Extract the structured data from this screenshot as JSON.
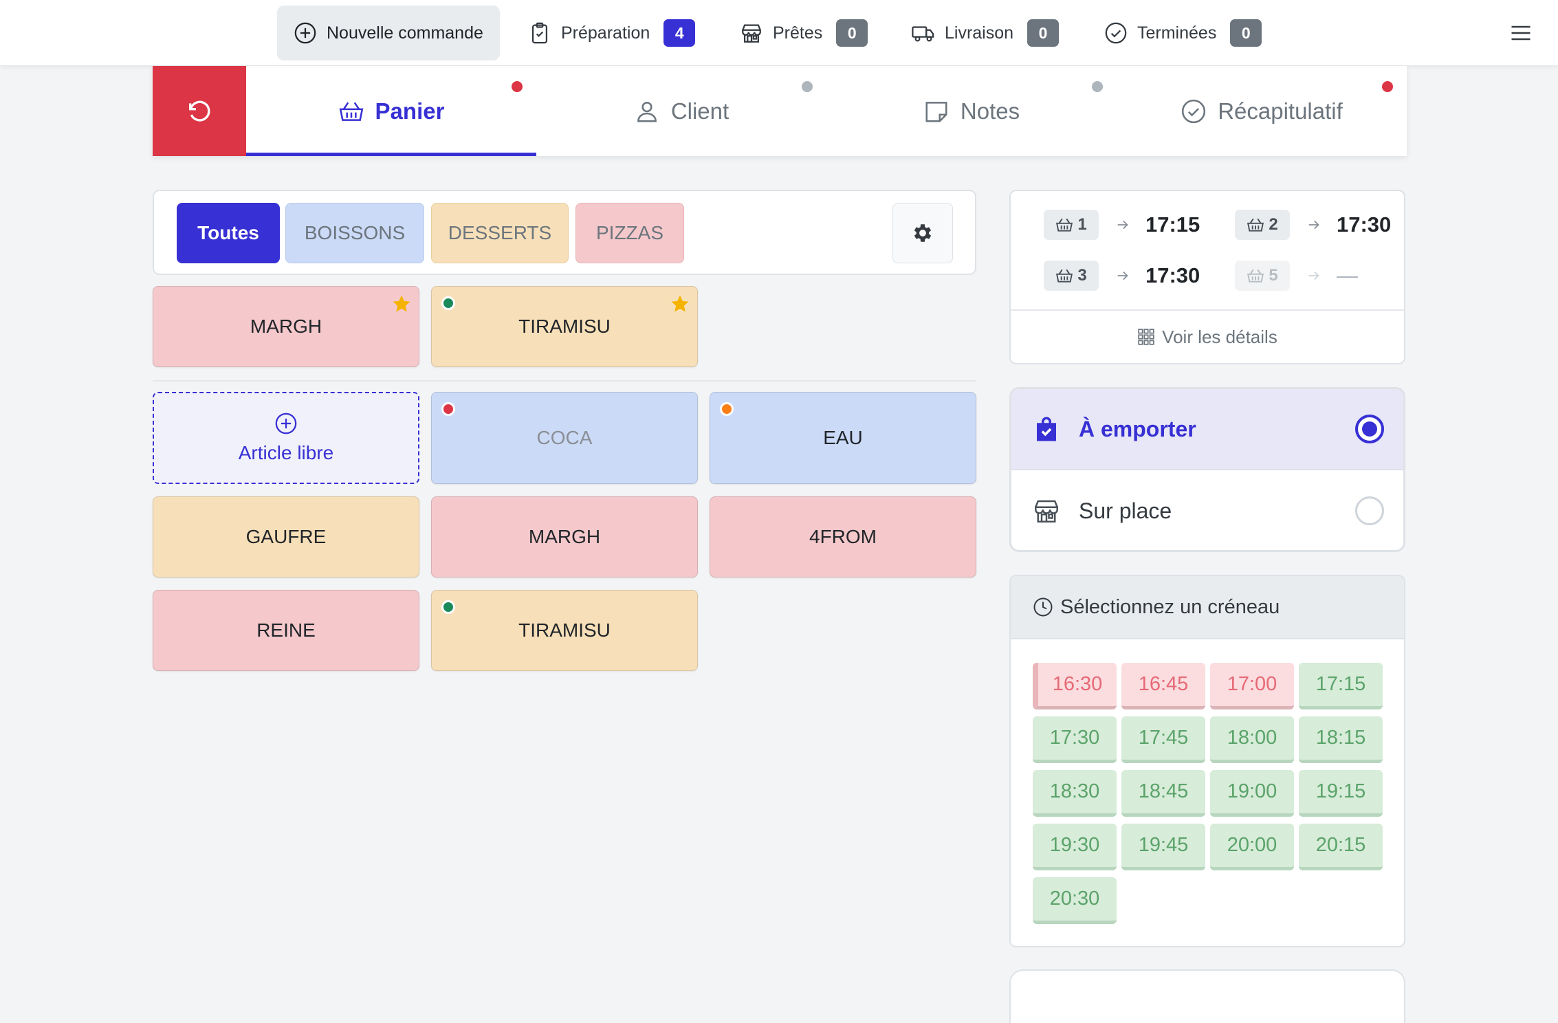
{
  "topnav": {
    "new_order": "Nouvelle commande",
    "preparation": {
      "label": "Préparation",
      "count": "4",
      "color": "#3730d4"
    },
    "ready": {
      "label": "Prêtes",
      "count": "0",
      "color": "#6c757d"
    },
    "delivery": {
      "label": "Livraison",
      "count": "0",
      "color": "#6c757d"
    },
    "done": {
      "label": "Terminées",
      "count": "0",
      "color": "#6c757d"
    }
  },
  "steps": [
    {
      "label": "Panier",
      "icon": "basket-icon",
      "active": true,
      "dot_color": "#dc3545"
    },
    {
      "label": "Client",
      "icon": "person-icon",
      "active": false,
      "dot_color": "#adb5bd"
    },
    {
      "label": "Notes",
      "icon": "sticky-note-icon",
      "active": false,
      "dot_color": "#adb5bd"
    },
    {
      "label": "Récapitulatif",
      "icon": "check-circle-icon",
      "active": false,
      "dot_color": "#dc3545"
    }
  ],
  "filters": [
    {
      "label": "Toutes",
      "active": true,
      "color": "#3730d4"
    },
    {
      "label": "BOISSONS",
      "color": "#cbdaf7"
    },
    {
      "label": "DESSERTS",
      "color": "#f7e0b9"
    },
    {
      "label": "PIZZAS",
      "color": "#f5c9cc"
    }
  ],
  "favorites": [
    {
      "label": "MARGH",
      "category": "PIZZAS",
      "star": true
    },
    {
      "label": "TIRAMISU",
      "category": "DESSERTS",
      "star": true,
      "status_dot": "#1a8a5a"
    }
  ],
  "free_article": "Article libre",
  "products": [
    {
      "label": "COCA",
      "category": "BOISSONS",
      "status_dot": "#dc3545",
      "muted": true
    },
    {
      "label": "EAU",
      "category": "BOISSONS",
      "status_dot": "#fd7e14"
    },
    {
      "label": "GAUFRE",
      "category": "DESSERTS"
    },
    {
      "label": "MARGH",
      "category": "PIZZAS"
    },
    {
      "label": "4FROM",
      "category": "PIZZAS"
    },
    {
      "label": "REINE",
      "category": "PIZZAS"
    },
    {
      "label": "TIRAMISU",
      "category": "DESSERTS",
      "status_dot": "#1a8a5a"
    }
  ],
  "slot_summary": {
    "entries": [
      {
        "n": "1",
        "time": "17:15"
      },
      {
        "n": "2",
        "time": "17:30"
      },
      {
        "n": "3",
        "time": "17:30"
      },
      {
        "n": "5",
        "time": "—"
      }
    ],
    "details": "Voir les détails"
  },
  "mode": {
    "takeaway": "À emporter",
    "dine_in": "Sur place",
    "selected": "takeaway"
  },
  "timeslots": {
    "title": "Sélectionnez un créneau",
    "slots": [
      {
        "time": "16:30",
        "status": "full"
      },
      {
        "time": "16:45",
        "status": "full"
      },
      {
        "time": "17:00",
        "status": "full"
      },
      {
        "time": "17:15",
        "status": "open"
      },
      {
        "time": "17:30",
        "status": "open"
      },
      {
        "time": "17:45",
        "status": "open"
      },
      {
        "time": "18:00",
        "status": "open"
      },
      {
        "time": "18:15",
        "status": "open"
      },
      {
        "time": "18:30",
        "status": "open"
      },
      {
        "time": "18:45",
        "status": "open"
      },
      {
        "time": "19:00",
        "status": "open"
      },
      {
        "time": "19:15",
        "status": "open"
      },
      {
        "time": "19:30",
        "status": "open"
      },
      {
        "time": "19:45",
        "status": "open"
      },
      {
        "time": "20:00",
        "status": "open"
      },
      {
        "time": "20:15",
        "status": "open"
      },
      {
        "time": "20:30",
        "status": "open"
      }
    ]
  }
}
